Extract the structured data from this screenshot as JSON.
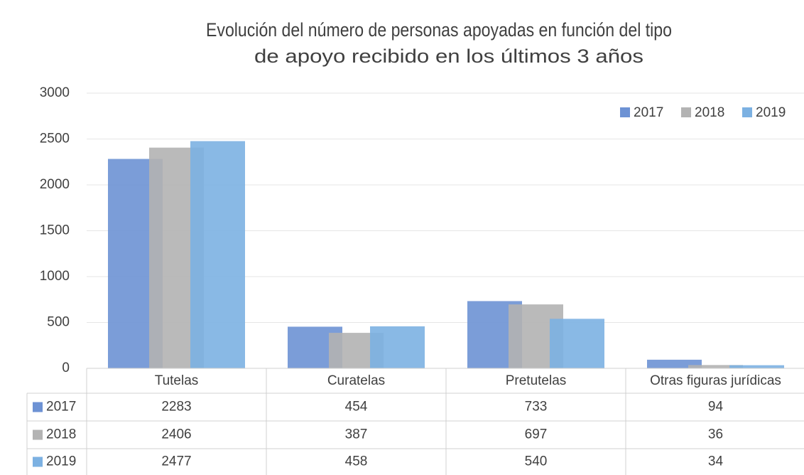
{
  "chart_data": {
    "type": "bar",
    "title": [
      "Evolución del número de personas apoyadas en función del tipo",
      "de apoyo recibido en los últimos 3 años"
    ],
    "categories": [
      "Tutelas",
      "Curatelas",
      "Pretutelas",
      "Otras figuras jurídicas"
    ],
    "series": [
      {
        "name": "2017",
        "color": "#6d92d4",
        "values": [
          2283,
          454,
          733,
          94
        ]
      },
      {
        "name": "2018",
        "color": "#b3b3b3",
        "values": [
          2406,
          387,
          697,
          36
        ]
      },
      {
        "name": "2019",
        "color": "#7cb1e2",
        "values": [
          2477,
          458,
          540,
          34
        ]
      }
    ],
    "ylim": [
      0,
      3000
    ],
    "yticks": [
      0,
      500,
      1000,
      1500,
      2000,
      2500,
      3000
    ],
    "grid": true,
    "legend": "top-right"
  }
}
